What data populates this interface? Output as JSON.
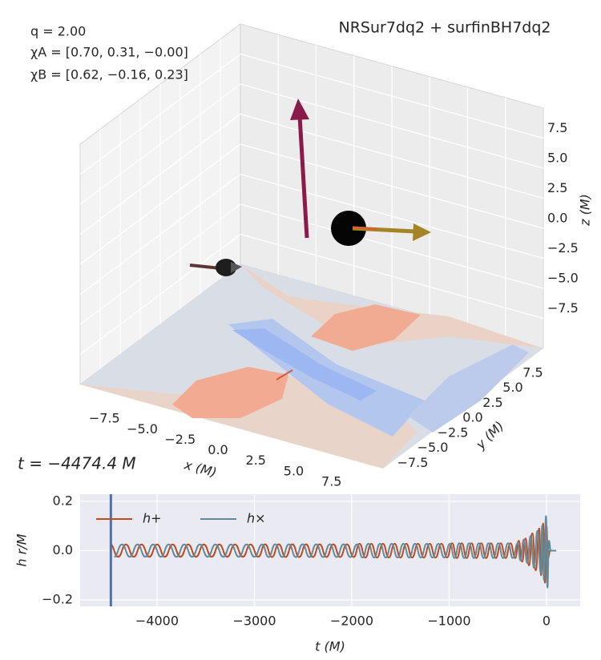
{
  "chart_data": [
    {
      "type": "3d",
      "title": "NRSur7dq2 + surfinBH7dq2",
      "annotations": [
        "q = 2.00",
        "χA = [0.70, 0.31, −0.00]",
        "χB = [0.62, −0.16, 0.23]"
      ],
      "time_label": "t = −4474.4 M",
      "xlabel": "x (M)",
      "ylabel": "y (M)",
      "zlabel": "z (M)",
      "xlim": [
        -10,
        10
      ],
      "ylim": [
        -10,
        10
      ],
      "zlim": [
        -10,
        10
      ],
      "xticks": [
        {
          "value": -7.5,
          "label": "−7.5"
        },
        {
          "value": -5.0,
          "label": "−5.0"
        },
        {
          "value": -2.5,
          "label": "−2.5"
        },
        {
          "value": 0,
          "label": "0.0"
        },
        2.5,
        {
          "value": 5.0,
          "label": "5.0"
        },
        7.5
      ],
      "yticks": [
        {
          "value": -7.5,
          "label": "−7.5"
        },
        {
          "value": -5.0,
          "label": "−5.0"
        },
        {
          "value": -2.5,
          "label": "−2.5"
        },
        {
          "value": 0,
          "label": "0.0"
        },
        2.5,
        {
          "value": 5.0,
          "label": "5.0"
        },
        7.5
      ],
      "zticks": [
        {
          "value": -7.5,
          "label": "−7.5"
        },
        {
          "value": -5.0,
          "label": "−5.0"
        },
        {
          "value": -2.5,
          "label": "−2.5"
        },
        {
          "value": 0,
          "label": "0.0"
        },
        2.5,
        {
          "value": 5.0,
          "label": "5.0"
        },
        7.5
      ],
      "grid": true
    },
    {
      "type": "line",
      "xlabel": "t (M)",
      "ylabel": "h r/M",
      "xlim": [
        -4790,
        346
      ],
      "ylim": [
        -0.226,
        0.229
      ],
      "xticks": [
        {
          "value": -4000,
          "label": "−4000"
        },
        {
          "value": -3000,
          "label": "−3000"
        },
        {
          "value": -2000,
          "label": "−2000"
        },
        {
          "value": -1000,
          "label": "−1000"
        },
        0
      ],
      "yticks": [
        {
          "value": -0.2,
          "label": "−0.2"
        },
        {
          "value": 0,
          "label": "0.0"
        },
        0.2
      ],
      "grid": true,
      "legend": "upper left",
      "marker_x": -4474.4,
      "marker_color": "#4c72b0",
      "series": [
        {
          "name": "h+",
          "color": "#c4481c",
          "x": [
            -4480,
            -4400,
            -4320,
            -4240,
            -4160,
            -4080,
            -4000,
            -3920,
            -3840,
            -3760,
            -3680,
            -3600,
            -3520,
            -3440,
            -3360,
            -3280,
            -3200,
            -3120,
            -3040,
            -2960,
            -2890,
            -2820,
            -2750,
            -2680,
            -2610,
            -2540,
            -2470,
            -2400,
            -2330,
            -2260,
            -2190,
            -2120,
            -2050,
            -1980,
            -1920,
            -1860,
            -1800,
            -1740,
            -1680,
            -1620,
            -1560,
            -1500,
            -1440,
            -1380,
            -1320,
            -1260,
            -1200,
            -1140,
            -1080,
            -1020,
            -970,
            -920,
            -870,
            -820,
            -770,
            -720,
            -670,
            -620,
            -570,
            -520,
            -470,
            -420,
            -370,
            -320,
            -285,
            -250,
            -215,
            -180,
            -145,
            -110,
            -75,
            -55,
            -35,
            -15,
            0,
            15,
            40,
            100
          ],
          "values": [
            0.025,
            -0.025,
            0.025,
            -0.025,
            0.025,
            -0.025,
            0.025,
            -0.025,
            0.025,
            -0.025,
            0.025,
            -0.025,
            0.025,
            -0.025,
            0.025,
            -0.025,
            0.025,
            -0.025,
            0.025,
            -0.025,
            0.026,
            -0.026,
            0.026,
            -0.026,
            0.026,
            -0.026,
            0.026,
            -0.026,
            0.026,
            -0.026,
            0.026,
            -0.026,
            0.026,
            -0.026,
            0.028,
            -0.028,
            0.028,
            -0.028,
            0.028,
            -0.028,
            0.028,
            -0.028,
            0.028,
            -0.028,
            0.028,
            -0.028,
            0.028,
            -0.028,
            0.028,
            -0.028,
            0.03,
            -0.03,
            0.03,
            -0.03,
            0.03,
            -0.03,
            0.03,
            -0.03,
            0.03,
            -0.03,
            0.03,
            -0.03,
            0.03,
            -0.03,
            0.04,
            -0.045,
            0.05,
            -0.06,
            0.07,
            -0.08,
            0.09,
            -0.1,
            0.11,
            -0.13,
            0.1,
            -0.03,
            0,
            0
          ]
        },
        {
          "name": "h×",
          "color": "#5f8c9c",
          "x": [
            -4440,
            -4360,
            -4280,
            -4200,
            -4120,
            -4040,
            -3960,
            -3880,
            -3800,
            -3720,
            -3640,
            -3560,
            -3480,
            -3400,
            -3320,
            -3240,
            -3160,
            -3080,
            -3000,
            -2920,
            -2855,
            -2785,
            -2715,
            -2645,
            -2575,
            -2505,
            -2435,
            -2365,
            -2295,
            -2225,
            -2155,
            -2085,
            -2015,
            -1945,
            -1890,
            -1830,
            -1770,
            -1710,
            -1650,
            -1590,
            -1530,
            -1470,
            -1410,
            -1350,
            -1290,
            -1230,
            -1170,
            -1110,
            -1050,
            -990,
            -945,
            -895,
            -845,
            -795,
            -745,
            -695,
            -645,
            -595,
            -545,
            -495,
            -445,
            -395,
            -345,
            -295,
            -268,
            -233,
            -198,
            -163,
            -128,
            -93,
            -58,
            -45,
            -25,
            -5,
            10,
            25,
            45,
            100
          ],
          "values": [
            -0.025,
            0.025,
            -0.025,
            0.025,
            -0.025,
            0.025,
            -0.025,
            0.025,
            -0.025,
            0.025,
            -0.025,
            0.025,
            -0.025,
            0.025,
            -0.025,
            0.025,
            -0.025,
            0.025,
            -0.025,
            0.025,
            -0.026,
            0.026,
            -0.026,
            0.026,
            -0.026,
            0.026,
            -0.026,
            0.026,
            -0.026,
            0.026,
            -0.026,
            0.026,
            -0.026,
            0.026,
            -0.028,
            0.028,
            -0.028,
            0.028,
            -0.028,
            0.028,
            -0.028,
            0.028,
            -0.028,
            0.028,
            -0.028,
            0.028,
            -0.028,
            0.028,
            -0.028,
            0.028,
            -0.03,
            0.03,
            -0.03,
            0.03,
            -0.03,
            0.03,
            -0.03,
            0.03,
            -0.03,
            0.03,
            -0.03,
            0.03,
            -0.03,
            0.03,
            -0.04,
            0.045,
            -0.05,
            0.06,
            -0.07,
            0.08,
            -0.09,
            0.1,
            -0.12,
            0.14,
            -0.15,
            0.04,
            0,
            0
          ]
        }
      ]
    }
  ]
}
